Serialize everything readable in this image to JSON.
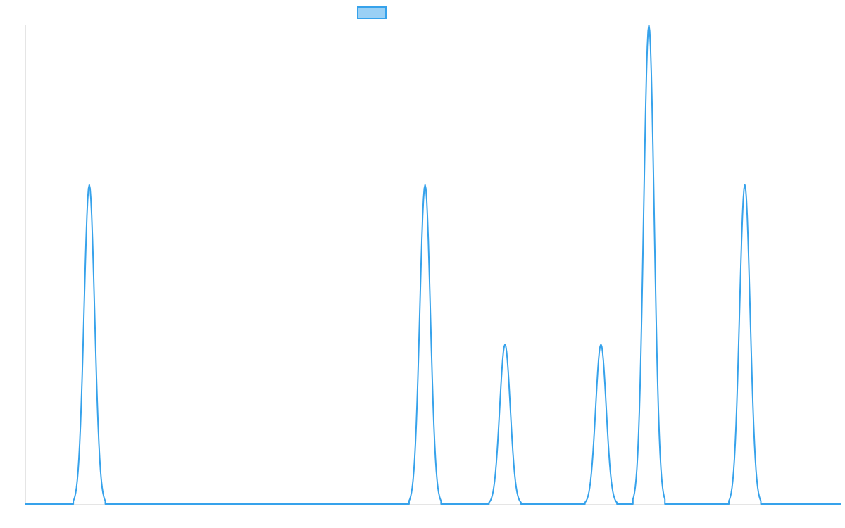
{
  "colors": {
    "series_line": "#36a2eb",
    "legend_fill": "#9ad0f5",
    "axis_line": "#e5e5e5",
    "background": "#ffffff"
  },
  "chart_data": {
    "type": "line",
    "title": "",
    "xlabel": "",
    "ylabel": "",
    "grid": false,
    "legend": {
      "placement": "top-center",
      "entries": [
        {
          "label": "",
          "color": "#36a2eb"
        }
      ]
    },
    "xlim": [
      0,
      1020
    ],
    "ylim": [
      0,
      3
    ],
    "series": [
      {
        "peaks": [
          {
            "x": 80,
            "height": 2
          },
          {
            "x": 500,
            "height": 2
          },
          {
            "x": 600,
            "height": 1
          },
          {
            "x": 720,
            "height": 1
          },
          {
            "x": 780,
            "height": 3
          },
          {
            "x": 900,
            "height": 2
          }
        ],
        "peak_half_width": 20,
        "baseline": 0
      }
    ]
  }
}
